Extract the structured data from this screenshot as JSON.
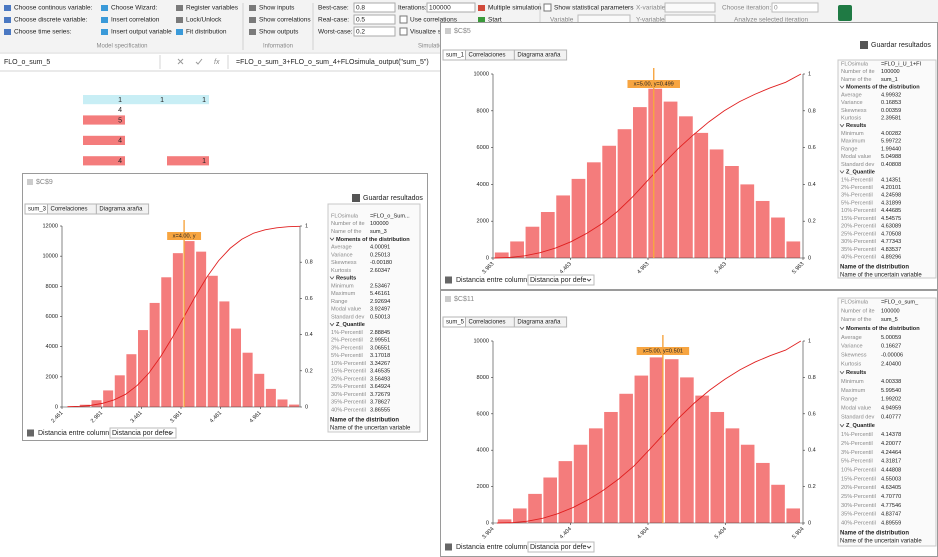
{
  "ribbon": {
    "model": {
      "items": [
        "Choose continous variable:",
        "Choose discrete variable:",
        "Choose time series:",
        "Choose Wizard:",
        "Insert correlation",
        "Insert output variable",
        "Register variables",
        "Lock/Unlock",
        "Fit distribution"
      ],
      "label": "Model specification"
    },
    "information": {
      "items": [
        "Show inputs",
        "Show correlations",
        "Show outputs"
      ],
      "label": "Information"
    },
    "simulation": {
      "best_label": "Best-case:",
      "best": 0.8,
      "real_label": "Real-case:",
      "real": 0.5,
      "worst_label": "Worst-case:",
      "worst": 0.2,
      "iterations_label": "Iterations:",
      "iterations": 100000,
      "use_correlations": "Use correlations",
      "visualize": "Visualize sim",
      "multiple": "Multiple simulation",
      "start": "Start",
      "label": "Simulatio"
    },
    "stats": {
      "show": "Show statistical parameters",
      "variable": "Variable",
      "x_variable": "X-variable",
      "y_variable": "Y-variable",
      "iteration_label": "Choose iteration:",
      "iteration": 0,
      "analyze": "Analyze selected iteration"
    }
  },
  "formula_bar": {
    "name": "FLO_o_sum_5",
    "fx": "fx",
    "formula": "=FLO_o_sum_3+FLO_o_sum_4+FLOsimula_output(\"sum_5\")"
  },
  "cells": {
    "rows": [
      [
        1,
        1,
        1
      ],
      [
        4,
        null,
        null
      ],
      [
        5,
        null,
        null
      ],
      [
        null,
        null,
        null
      ],
      [
        4,
        null,
        null
      ],
      [
        null,
        null,
        null
      ],
      [
        4,
        null,
        1
      ]
    ],
    "row_colors": [
      "#c8eef5",
      null,
      "#f47c7c",
      null,
      "#f47c7c",
      null,
      "#f47c7c"
    ]
  },
  "windows": [
    {
      "title": "$C$9",
      "tabs": [
        "sum_3",
        "Correlaciones",
        "Diagrama araña"
      ],
      "save": "Guardar resultados",
      "info": [
        [
          "FLOsimula",
          "=FLO_o_Sum..."
        ],
        [
          "Number of ite",
          "100000"
        ],
        [
          "Name of the",
          "sum_3"
        ]
      ],
      "sections": [
        {
          "title": "Moments of the distribution",
          "rows": [
            [
              "Average",
              "4.00091"
            ],
            [
              "Variance",
              "0.25013"
            ],
            [
              "Skewness",
              "-0.00180"
            ],
            [
              "Kurtosis",
              "2.60347"
            ]
          ]
        },
        {
          "title": "Results",
          "rows": [
            [
              "Minimum",
              "2.53467"
            ],
            [
              "Maximum",
              "5.46161"
            ],
            [
              "Range",
              "2.92694"
            ],
            [
              "Modal value",
              "3.92497"
            ],
            [
              "Standard dev",
              "0.50013"
            ]
          ]
        },
        {
          "title": "Z_Quantile",
          "rows": [
            [
              "1%-Percentil",
              "2.88845"
            ],
            [
              "2%-Percentil",
              "2.99551"
            ],
            [
              "3%-Percentil",
              "3.06551"
            ],
            [
              "5%-Percentil",
              "3.17018"
            ],
            [
              "10%-Percentil",
              "3.34267"
            ],
            [
              "15%-Percentil",
              "3.46535"
            ],
            [
              "20%-Percentil",
              "3.56493"
            ],
            [
              "25%-Percentil",
              "3.64924"
            ],
            [
              "30%-Percentil",
              "3.72679"
            ],
            [
              "35%-Percentil",
              "3.78627"
            ],
            [
              "40%-Percentil",
              "3.86555"
            ]
          ]
        }
      ],
      "footer_title": "Name of the distribution",
      "footer_text": "Name of the uncertan variable",
      "distance_label": "Distancia entre columnas:",
      "distance_value": "Distancia por defec"
    },
    {
      "title": "$C$5",
      "tabs": [
        "sum_1",
        "Correlaciones",
        "Diagrama araña"
      ],
      "save": "Guardar resultados",
      "info": [
        [
          "FLOsimula",
          "=FLO_i_U_1+FI"
        ],
        [
          "Number of ite",
          "100000"
        ],
        [
          "Name of the",
          "sum_1"
        ]
      ],
      "sections": [
        {
          "title": "Moments of the distribution",
          "rows": [
            [
              "Average",
              "4.99932"
            ],
            [
              "Variance",
              "0.16853"
            ],
            [
              "Skewness",
              "0.00359"
            ],
            [
              "Kurtosis",
              "2.39581"
            ]
          ]
        },
        {
          "title": "Results",
          "rows": [
            [
              "Minimum",
              "4.00282"
            ],
            [
              "Maximum",
              "5.99722"
            ],
            [
              "Range",
              "1.99440"
            ],
            [
              "Modal value",
              "5.04988"
            ],
            [
              "Standard dev",
              "0.40808"
            ]
          ]
        },
        {
          "title": "Z_Quantile",
          "rows": [
            [
              "1%-Percentil",
              "4.14351"
            ],
            [
              "2%-Percentil",
              "4.20101"
            ],
            [
              "3%-Percentil",
              "4.24598"
            ],
            [
              "5%-Percentil",
              "4.31899"
            ],
            [
              "10%-Percentil",
              "4.44685"
            ],
            [
              "15%-Percentil",
              "4.54575"
            ],
            [
              "20%-Percentil",
              "4.63089"
            ],
            [
              "25%-Percentil",
              "4.70508"
            ],
            [
              "30%-Percentil",
              "4.77343"
            ],
            [
              "35%-Percentil",
              "4.83537"
            ],
            [
              "40%-Percentil",
              "4.89296"
            ]
          ]
        }
      ],
      "footer_title": "Name of the distribution",
      "footer_text": "Name of the uncertain variable",
      "distance_label": "Distancia entre columnas:",
      "distance_value": "Distancia por defe"
    },
    {
      "title": "$C$11",
      "tabs": [
        "sum_5",
        "Correlaciones",
        "Diagrama araña"
      ],
      "save": "Guardar resultados",
      "info": [
        [
          "FLOsimula",
          "=FLO_o_sum_"
        ],
        [
          "Number of ite",
          "100000"
        ],
        [
          "Name of the",
          "sum_5"
        ]
      ],
      "sections": [
        {
          "title": "Moments of the distribution",
          "rows": [
            [
              "Average",
              "5.00059"
            ],
            [
              "Variance",
              "0.16627"
            ],
            [
              "Skewness",
              "-0.00006"
            ],
            [
              "Kurtosis",
              "2.40400"
            ]
          ]
        },
        {
          "title": "Results",
          "rows": [
            [
              "Minimum",
              "4.00338"
            ],
            [
              "Maximum",
              "5.99540"
            ],
            [
              "Range",
              "1.99202"
            ],
            [
              "Modal value",
              "4.94959"
            ],
            [
              "Standard dev",
              "0.40777"
            ]
          ]
        },
        {
          "title": "Z_Quantile",
          "rows": [
            [
              "1%-Percentil",
              "4.14378"
            ],
            [
              "2%-Percentil",
              "4.20077"
            ],
            [
              "3%-Percentil",
              "4.24464"
            ],
            [
              "5%-Percentil",
              "4.31817"
            ],
            [
              "10%-Percentil",
              "4.44808"
            ],
            [
              "15%-Percentil",
              "4.55003"
            ],
            [
              "20%-Percentil",
              "4.63405"
            ],
            [
              "25%-Percentil",
              "4.70770"
            ],
            [
              "30%-Percentil",
              "4.77546"
            ],
            [
              "35%-Percentil",
              "4.83747"
            ],
            [
              "40%-Percentil",
              "4.89559"
            ]
          ]
        }
      ],
      "footer_title": "Name of the distribution",
      "footer_text": "Name of the uncertain variable",
      "distance_label": "Distancia entre columnas:",
      "distance_value": "Distancia por defe"
    }
  ],
  "chart_data": [
    {
      "type": "histogram",
      "color": "#f47c7c",
      "bins": [
        2.53,
        2.6765,
        2.823,
        2.9695,
        3.116,
        3.2625,
        3.409,
        3.5555,
        3.702,
        3.8485,
        3.995,
        4.1415,
        4.288,
        4.4345,
        4.581,
        4.7275,
        4.874,
        5.0205,
        5.167,
        5.3135,
        5.46
      ],
      "values": [
        40,
        150,
        450,
        1100,
        2100,
        3500,
        5100,
        6900,
        8600,
        10200,
        11000,
        10300,
        8700,
        7000,
        5200,
        3600,
        2200,
        1200,
        500,
        160
      ],
      "line": {
        "color": "#e02020",
        "axis": "y2",
        "values": [
          0.002,
          0.004,
          0.009,
          0.02,
          0.039,
          0.07,
          0.119,
          0.187,
          0.276,
          0.381,
          0.496,
          0.611,
          0.718,
          0.808,
          0.877,
          0.927,
          0.96,
          0.979,
          0.99,
          0.996,
          0.998
        ]
      },
      "xlim": [
        2.461,
        5.461
      ],
      "xticks": [
        2.461,
        2.961,
        3.461,
        3.961,
        4.461,
        4.961
      ],
      "ylim": [
        0,
        12000
      ],
      "yticks": [
        0,
        2000,
        4000,
        6000,
        8000,
        10000,
        12000
      ],
      "y2lim": [
        0,
        1
      ],
      "y2ticks": [
        0,
        0.2,
        0.4,
        0.6,
        0.8,
        1
      ],
      "annotation": {
        "text": "x=4.00, y",
        "x": 4.0,
        "color": "#f7a541"
      }
    },
    {
      "type": "histogram",
      "color": "#f47c7c",
      "bins": [
        3.97,
        4.069,
        4.168,
        4.267,
        4.366,
        4.465,
        4.564,
        4.663,
        4.762,
        4.861,
        4.96,
        5.059,
        5.158,
        5.257,
        5.356,
        5.455,
        5.554,
        5.653,
        5.752,
        5.851,
        5.95
      ],
      "values": [
        300,
        900,
        1700,
        2500,
        3400,
        4300,
        5200,
        6100,
        7000,
        8200,
        9200,
        8500,
        7700,
        6800,
        5900,
        5000,
        4000,
        3100,
        2200,
        900
      ],
      "line": {
        "color": "#e02020",
        "axis": "y2",
        "values": [
          0,
          0.003,
          0.012,
          0.029,
          0.054,
          0.088,
          0.132,
          0.185,
          0.25,
          0.33,
          0.42,
          0.51,
          0.595,
          0.67,
          0.74,
          0.8,
          0.85,
          0.89,
          0.925,
          0.955,
          1
        ]
      },
      "xlim": [
        3.963,
        5.963
      ],
      "xticks": [
        3.963,
        4.463,
        4.963,
        5.463,
        5.963
      ],
      "ylim": [
        0,
        10000
      ],
      "yticks": [
        0,
        2000,
        4000,
        6000,
        8000,
        10000
      ],
      "y2lim": [
        0,
        1
      ],
      "y2ticks": [
        0,
        0.2,
        0.4,
        0.6,
        0.8,
        1
      ],
      "annotation": {
        "text": "x=5.00, y=0.499",
        "x": 5.0,
        "color": "#f7a541"
      }
    },
    {
      "type": "histogram",
      "color": "#f47c7c",
      "bins": [
        3.93,
        4.028,
        4.126,
        4.224,
        4.322,
        4.42,
        4.518,
        4.616,
        4.714,
        4.812,
        4.91,
        5.008,
        5.106,
        5.204,
        5.302,
        5.4,
        5.498,
        5.596,
        5.694,
        5.792,
        5.89
      ],
      "values": [
        200,
        800,
        1600,
        2500,
        3400,
        4300,
        5200,
        6100,
        7100,
        8100,
        9100,
        9000,
        8000,
        7000,
        6100,
        5200,
        4300,
        3300,
        2100,
        800
      ],
      "line": {
        "color": "#e02020",
        "axis": "y2",
        "values": [
          0,
          0.002,
          0.01,
          0.026,
          0.051,
          0.085,
          0.128,
          0.18,
          0.241,
          0.312,
          0.4,
          0.49,
          0.58,
          0.66,
          0.73,
          0.79,
          0.842,
          0.885,
          0.92,
          0.95,
          1
        ]
      },
      "xlim": [
        3.904,
        5.904
      ],
      "xticks": [
        3.904,
        4.404,
        4.904,
        5.404,
        5.904
      ],
      "ylim": [
        0,
        10000
      ],
      "yticks": [
        0,
        2000,
        4000,
        6000,
        8000,
        10000
      ],
      "y2lim": [
        0,
        1
      ],
      "y2ticks": [
        0,
        0.2,
        0.4,
        0.6,
        0.8,
        1
      ],
      "annotation": {
        "text": "x=5.00, y=0.501",
        "x": 5.0,
        "color": "#f7a541"
      }
    }
  ]
}
